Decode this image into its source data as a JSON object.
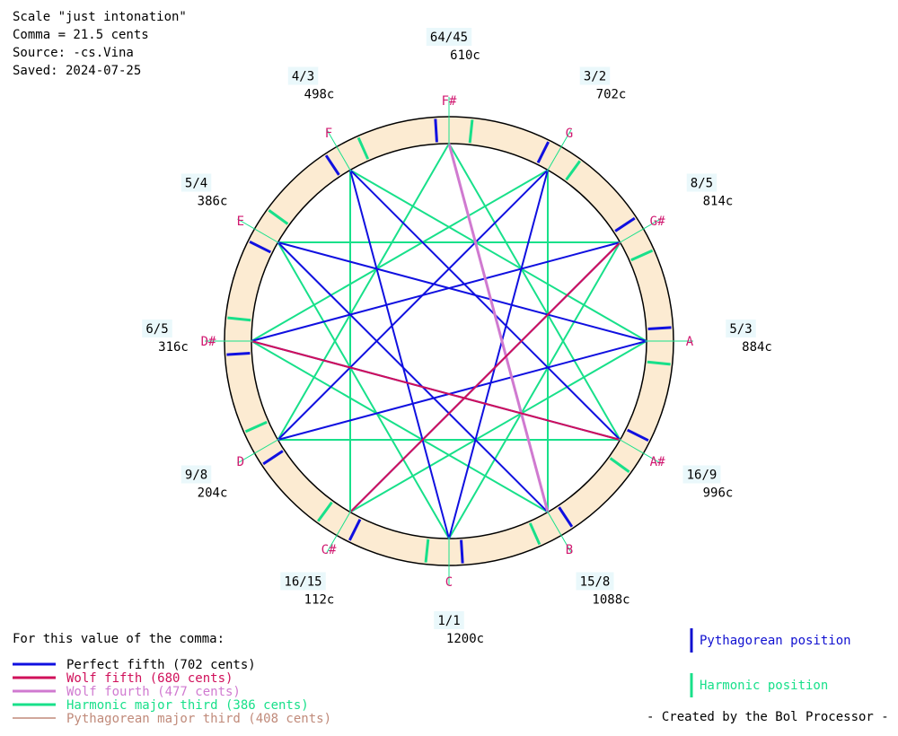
{
  "header": {
    "line1": "Scale \"just intonation\"",
    "line2": "Comma = 21.5 cents",
    "line3": "Source: -cs.Vina",
    "line4": "Saved: 2024-07-25"
  },
  "notes": [
    {
      "name": "F#",
      "ratio": "64/45",
      "cents": "610c"
    },
    {
      "name": "G",
      "ratio": "3/2",
      "cents": "702c"
    },
    {
      "name": "G#",
      "ratio": "8/5",
      "cents": "814c"
    },
    {
      "name": "A",
      "ratio": "5/3",
      "cents": "884c"
    },
    {
      "name": "A#",
      "ratio": "16/9",
      "cents": "996c"
    },
    {
      "name": "B",
      "ratio": "15/8",
      "cents": "1088c"
    },
    {
      "name": "C",
      "ratio": "1/1",
      "cents": "1200c"
    },
    {
      "name": "C#",
      "ratio": "16/15",
      "cents": "112c"
    },
    {
      "name": "D",
      "ratio": "9/8",
      "cents": "204c"
    },
    {
      "name": "D#",
      "ratio": "6/5",
      "cents": "316c"
    },
    {
      "name": "E",
      "ratio": "5/4",
      "cents": "386c"
    },
    {
      "name": "F",
      "ratio": "4/3",
      "cents": "498c"
    }
  ],
  "legend": {
    "title": "For this value of the comma:",
    "items": [
      {
        "label": "Perfect fifth (702 cents)",
        "color": "#1010e0"
      },
      {
        "label": "Wolf fifth (680 cents)",
        "color": "#d0105a"
      },
      {
        "label": "Wolf fourth (477 cents)",
        "color": "#d07ad0"
      },
      {
        "label": "Harmonic major third (386 cents)",
        "color": "#18e08a"
      },
      {
        "label": "Pythagorean major third (408 cents)",
        "color": "#c08a7a"
      }
    ]
  },
  "position_legend": {
    "pythagorean": {
      "label": "Pythagorean position",
      "color": "#1010d0"
    },
    "harmonic": {
      "label": "Harmonic position",
      "color": "#18e08a"
    }
  },
  "credit": "- Created by the Bol Processor -",
  "colors": {
    "ring": "#fcebd2",
    "note": "#d01870",
    "perfect_fifth": "#1010e0",
    "wolf_fifth": "#d0105a",
    "wolf_fourth": "#d07ad0",
    "harmonic_third": "#18e08a",
    "pythagorean_third": "#c08a7a"
  },
  "connections": {
    "perfect_fifths": [
      [
        "C",
        "G"
      ],
      [
        "G",
        "D"
      ],
      [
        "D",
        "A"
      ],
      [
        "A",
        "E"
      ],
      [
        "E",
        "B"
      ],
      [
        "B",
        "F#"
      ],
      [
        "C",
        "F"
      ],
      [
        "F",
        "A#"
      ],
      [
        "A#",
        "D#"
      ],
      [
        "D#",
        "G#"
      ],
      [
        "G#",
        "C#"
      ]
    ],
    "wolf_fifths": [
      [
        "C#",
        "G#"
      ],
      [
        "D#",
        "A#"
      ]
    ],
    "wolf_fourths": [
      [
        "F#",
        "B"
      ]
    ],
    "harmonic_thirds": [
      [
        "C",
        "E"
      ],
      [
        "C",
        "G#"
      ],
      [
        "D",
        "F#"
      ],
      [
        "D#",
        "G"
      ],
      [
        "E",
        "G#"
      ],
      [
        "F",
        "A"
      ],
      [
        "G",
        "B"
      ],
      [
        "A",
        "C#"
      ],
      [
        "A#",
        "D"
      ],
      [
        "F#",
        "A#"
      ],
      [
        "B",
        "D#"
      ],
      [
        "C#",
        "F"
      ]
    ],
    "pythagorean_thirds": [
      [
        "D",
        "F#"
      ],
      [
        "D",
        "A#"
      ]
    ]
  }
}
